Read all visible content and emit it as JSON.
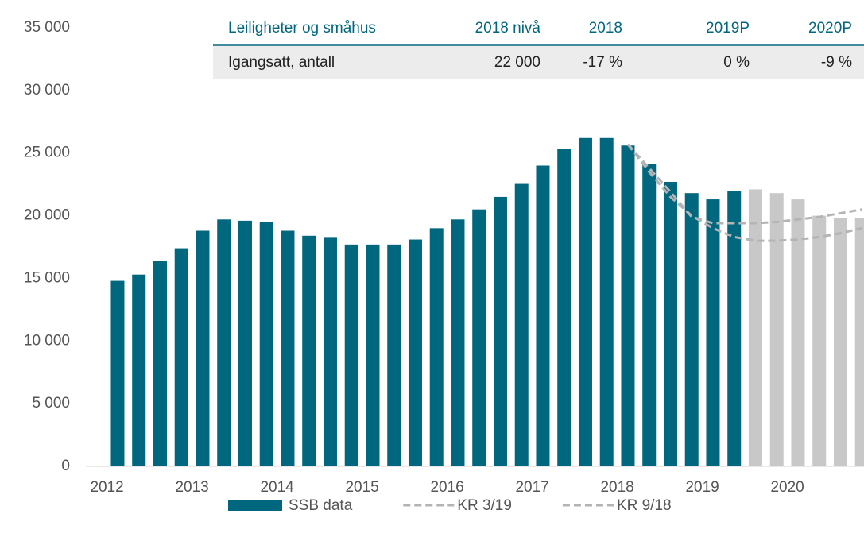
{
  "chart_data": {
    "type": "bar",
    "categories": [
      "2012",
      null,
      null,
      null,
      "2013",
      null,
      null,
      null,
      "2014",
      null,
      null,
      null,
      "2015",
      null,
      null,
      null,
      "2016",
      null,
      null,
      null,
      "2017",
      null,
      null,
      null,
      "2018",
      null,
      null,
      null,
      "2019",
      null,
      null,
      null,
      "2020",
      null,
      null,
      null
    ],
    "series": [
      {
        "name": "SSB data",
        "color": "#00677f",
        "type": "bar",
        "values": [
          14800,
          15300,
          16400,
          17400,
          18800,
          19700,
          19600,
          19500,
          18800,
          18400,
          18300,
          17700,
          17700,
          17700,
          18100,
          19000,
          19700,
          20500,
          21500,
          22600,
          24000,
          25300,
          26200,
          26200,
          25600,
          24100,
          22700,
          21800,
          21300,
          22000,
          null,
          null,
          null,
          null,
          null,
          null
        ]
      },
      {
        "color": "#c8c8c8",
        "type": "bar",
        "values": [
          null,
          null,
          null,
          null,
          null,
          null,
          null,
          null,
          null,
          null,
          null,
          null,
          null,
          null,
          null,
          null,
          null,
          null,
          null,
          null,
          null,
          null,
          null,
          null,
          null,
          null,
          null,
          null,
          null,
          null,
          22100,
          21800,
          21300,
          20000,
          19800,
          19800
        ]
      },
      {
        "name": "KR 3/19",
        "color": "#b4b4b4",
        "type": "line",
        "values": [
          null,
          null,
          null,
          null,
          null,
          null,
          null,
          null,
          null,
          null,
          null,
          null,
          null,
          null,
          null,
          null,
          null,
          null,
          null,
          null,
          null,
          null,
          null,
          null,
          25700,
          23800,
          21900,
          19900,
          19400,
          19400,
          19400,
          19500,
          19700,
          19900,
          20200,
          20500
        ]
      },
      {
        "name": "KR 9/18",
        "color": "#b4b4b4",
        "type": "line",
        "values": [
          null,
          null,
          null,
          null,
          null,
          null,
          null,
          null,
          null,
          null,
          null,
          null,
          null,
          null,
          null,
          null,
          null,
          null,
          null,
          null,
          null,
          null,
          null,
          null,
          25700,
          23500,
          21500,
          20000,
          19000,
          18300,
          18000,
          18000,
          18100,
          18300,
          18600,
          19000
        ]
      }
    ],
    "ylim": [
      0,
      35000
    ],
    "yticks": [
      {
        "value": 0,
        "label": "0"
      },
      {
        "value": 5000,
        "label": "5 000"
      },
      {
        "value": 10000,
        "label": "10 000"
      },
      {
        "value": 15000,
        "label": "15 000"
      },
      {
        "value": 20000,
        "label": "20 000"
      },
      {
        "value": 25000,
        "label": "25 000"
      },
      {
        "value": 30000,
        "label": "30 000"
      },
      {
        "value": 35000,
        "label": "35 000"
      }
    ],
    "legend": "bottom"
  },
  "table": {
    "header": [
      "Leiligheter og småhus",
      "2018 nivå",
      "2018",
      "2019P",
      "2020P"
    ],
    "rows": [
      [
        "Igangsatt, antall",
        "22 000",
        "-17 %",
        "0 %",
        "-9 %"
      ]
    ]
  }
}
